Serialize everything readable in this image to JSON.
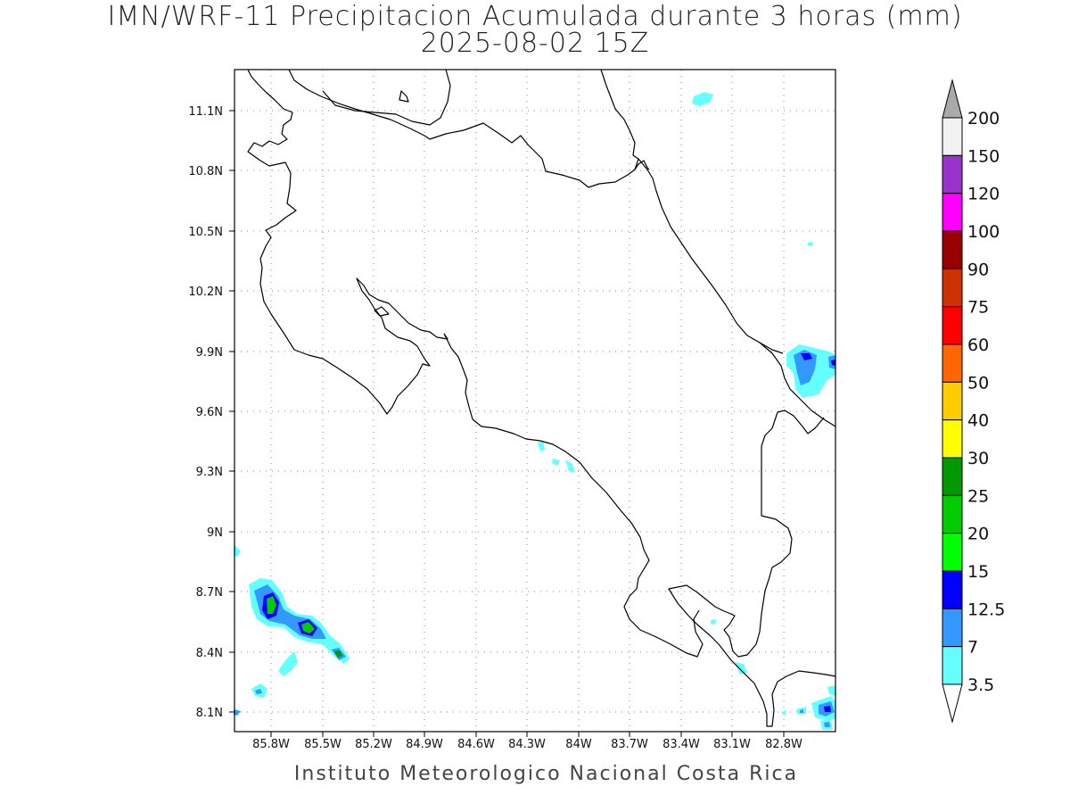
{
  "title": {
    "line1": "IMN/WRF-11 Precipitacion Acumulada durante 3 horas (mm)",
    "line2": "2025-08-02 15Z"
  },
  "footer": "Instituto Meteorologico Nacional Costa Rica",
  "axes": {
    "lat_ticks": [
      "11.1N",
      "10.8N",
      "10.5N",
      "10.2N",
      "9.9N",
      "9.6N",
      "9.3N",
      "9N",
      "8.7N",
      "8.4N",
      "8.1N"
    ],
    "lon_ticks": [
      "85.8W",
      "85.5W",
      "85.2W",
      "84.9W",
      "84.6W",
      "84.3W",
      "84W",
      "83.7W",
      "83.4W",
      "83.1W",
      "82.8W"
    ]
  },
  "colorbar": {
    "labels": [
      "200",
      "150",
      "120",
      "100",
      "90",
      "75",
      "60",
      "50",
      "40",
      "30",
      "25",
      "20",
      "15",
      "12.5",
      "7",
      "3.5"
    ],
    "colors": [
      "#f2f2f2",
      "#9933cc",
      "#ff00ff",
      "#990000",
      "#cc3300",
      "#ff0000",
      "#ff6600",
      "#ffcc00",
      "#ffff00",
      "#009900",
      "#00cc00",
      "#00ff00",
      "#0000ff",
      "#3399ff",
      "#66ffff"
    ],
    "over_color": "#aaaaaa",
    "under_color": "#ffffff"
  }
}
